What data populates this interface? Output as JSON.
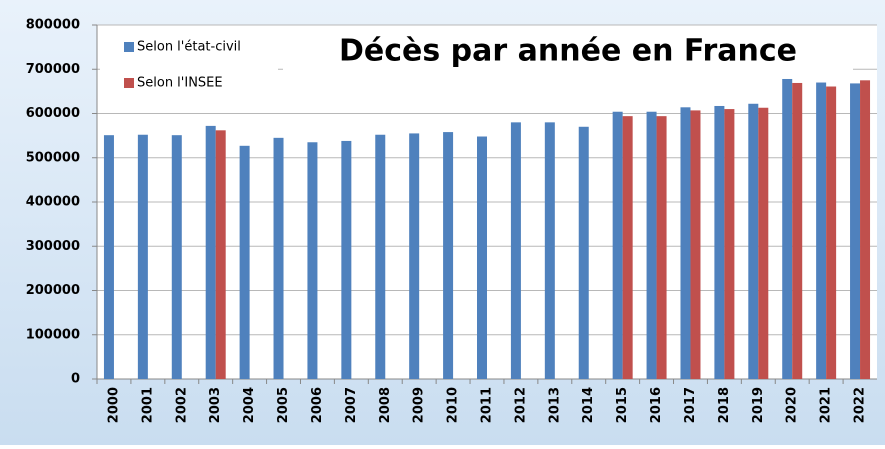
{
  "chart_data": {
    "type": "bar",
    "title": "Décès par année en France",
    "categories": [
      "2000",
      "2001",
      "2002",
      "2003",
      "2004",
      "2005",
      "2006",
      "2007",
      "2008",
      "2009",
      "2010",
      "2011",
      "2012",
      "2013",
      "2014",
      "2015",
      "2016",
      "2017",
      "2018",
      "2019",
      "2020",
      "2021",
      "2022"
    ],
    "series": [
      {
        "name": "Selon l'état-civil",
        "color": "#4f81bd",
        "values": [
          551000,
          552000,
          551000,
          572000,
          527000,
          545000,
          535000,
          538000,
          552000,
          555000,
          558000,
          548000,
          580000,
          580000,
          570000,
          604000,
          604000,
          614000,
          617000,
          622000,
          678000,
          670000,
          668000
        ]
      },
      {
        "name": "Selon l'INSEE",
        "color": "#c0504d",
        "values": [
          null,
          null,
          null,
          562000,
          null,
          null,
          null,
          null,
          null,
          null,
          null,
          null,
          null,
          null,
          null,
          594000,
          594000,
          607000,
          610000,
          613000,
          669000,
          661000,
          675000
        ]
      }
    ],
    "ylim": [
      0,
      800000
    ],
    "yticks": [
      0,
      100000,
      200000,
      300000,
      400000,
      500000,
      600000,
      700000,
      800000
    ],
    "grid": true
  }
}
